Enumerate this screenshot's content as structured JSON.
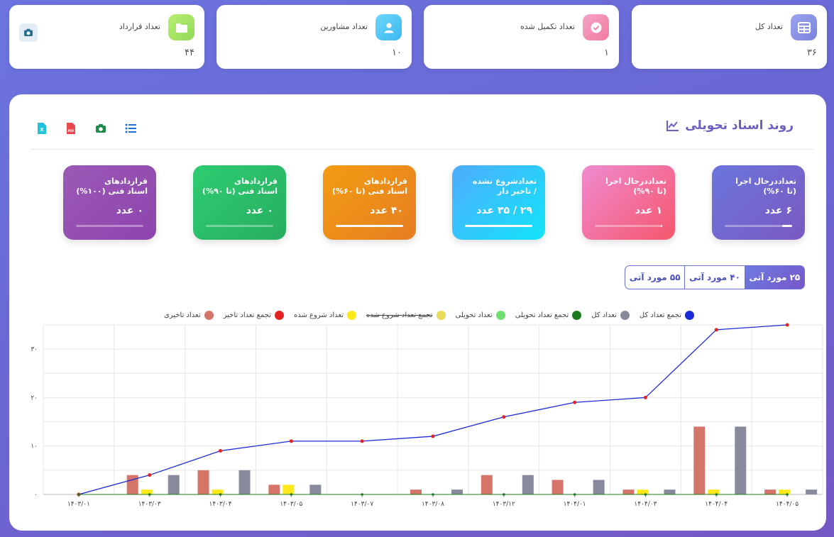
{
  "stats": [
    {
      "label": "تعداد کل",
      "value": "۳۶",
      "icon": "table-icon",
      "color": "#8d94e8"
    },
    {
      "label": "تعداد تکمیل شده",
      "value": "۱",
      "icon": "check-icon",
      "color": "#f58ab0"
    },
    {
      "label": "تعداد مشاورین",
      "value": "۱۰",
      "icon": "user-icon",
      "color": "#4fc8f5"
    },
    {
      "label": "تعداد قرارداد",
      "value": "۴۴",
      "icon": "folder-icon",
      "color": "#a6e36a"
    }
  ],
  "panel": {
    "title": "روند اسناد تحویلی"
  },
  "kpis": [
    {
      "title1": "تعداددرحال اجرا",
      "title2": "(تا ۶۰%)",
      "value": "۶ عدد",
      "progress": 0.15,
      "gradient": [
        "#6b76dd",
        "#7a59c0"
      ]
    },
    {
      "title1": "تعداددرحال اجرا",
      "title2": "(تا ۹۰%)",
      "value": "۱ عدد",
      "progress": 0.02,
      "gradient": [
        "#f08ad0",
        "#f5576c"
      ]
    },
    {
      "title1": "تعدادشروع نشده",
      "title2": "/ تاخیر دار",
      "value": "۲۹ / ۳۵ عدد",
      "progress": 1.0,
      "gradient": [
        "#4facfe",
        "#12e4f8"
      ]
    },
    {
      "title1": "قراردادهای",
      "title2": "اسناد فنی (تا ۶۰%)",
      "value": "۴۰ عدد",
      "progress": 1.0,
      "gradient": [
        "#f39c12",
        "#e67e22"
      ]
    },
    {
      "title1": "قراردادهای",
      "title2": "اسناد فنی (تا ۹۰%)",
      "value": "۰ عدد",
      "progress": 0.0,
      "gradient": [
        "#2ecc71",
        "#27ae60"
      ]
    },
    {
      "title1": "قراردادهای",
      "title2": "اسناد فنی (۱۰۰%)",
      "value": "۰ عدد",
      "progress": 0.0,
      "gradient": [
        "#9b59b6",
        "#8e44ad"
      ]
    }
  ],
  "segments": [
    "۲۵ مورد آتی",
    "۴۰ مورد آتی",
    "۵۵ مورد آتی"
  ],
  "legend": [
    {
      "label": "تجمع تعداد کل",
      "color": "#1a2ad8",
      "strike": false
    },
    {
      "label": "تعداد کل",
      "color": "#868a9c",
      "strike": false
    },
    {
      "label": "تجمع تعداد تحویلی",
      "color": "#1e7a1e",
      "strike": false
    },
    {
      "label": "تعداد تحویلی",
      "color": "#6ee06e",
      "strike": false
    },
    {
      "label": "تجمع تعداد شروع شده",
      "color": "#e9db5a",
      "strike": true
    },
    {
      "label": "تعداد شروع شده",
      "color": "#ffe818",
      "strike": false
    },
    {
      "label": "تجمع تعداد تاخیر",
      "color": "#e52222",
      "strike": false
    },
    {
      "label": "تعداد تاخیری",
      "color": "#d57468",
      "strike": false
    }
  ],
  "chart_data": {
    "type": "bar",
    "categories": [
      "۱۴۰۳/۰۱",
      "۱۴۰۳/۰۳",
      "۱۴۰۳/۰۴",
      "۱۴۰۳/۰۵",
      "۱۴۰۳/۰۷",
      "۱۴۰۳/۰۸",
      "۱۴۰۳/۱۲",
      "۱۴۰۴/۰۱",
      "۱۴۰۴/۰۳",
      "۱۴۰۴/۰۴",
      "۱۴۰۴/۰۵"
    ],
    "ylim": [
      0,
      35
    ],
    "yticks": [
      0,
      10,
      20,
      30
    ],
    "ytick_labels": [
      "۰",
      "۱۰",
      "۲۰",
      "۳۰"
    ],
    "series": [
      {
        "name": "تعداد تاخیری",
        "type": "bar",
        "color": "#d57468",
        "values": [
          0,
          4,
          5,
          2,
          0,
          1,
          4,
          3,
          1,
          14,
          1
        ]
      },
      {
        "name": "تعداد شروع شده",
        "type": "bar",
        "color": "#ffe818",
        "values": [
          0,
          1,
          1,
          2,
          0,
          0,
          0,
          0,
          1,
          1,
          1
        ]
      },
      {
        "name": "تعداد تحویلی",
        "type": "bar",
        "color": "#6ee06e",
        "values": [
          0,
          0,
          0,
          0,
          0,
          0,
          0,
          0,
          0,
          0,
          0
        ]
      },
      {
        "name": "تعداد کل",
        "type": "bar",
        "color": "#868a9c",
        "values": [
          0,
          4,
          5,
          2,
          0,
          1,
          4,
          3,
          1,
          14,
          1
        ]
      },
      {
        "name": "تجمع تعداد کل",
        "type": "line",
        "color": "#1a2ad8",
        "marker": "#e52222",
        "values": [
          0,
          4,
          9,
          11,
          11,
          12,
          16,
          19,
          20,
          34,
          35
        ]
      },
      {
        "name": "تجمع تعداد تحویلی",
        "type": "line",
        "color": "#1e7a1e",
        "values": [
          0,
          0,
          0,
          0,
          0,
          0,
          0,
          0,
          0,
          0,
          0
        ]
      }
    ]
  }
}
